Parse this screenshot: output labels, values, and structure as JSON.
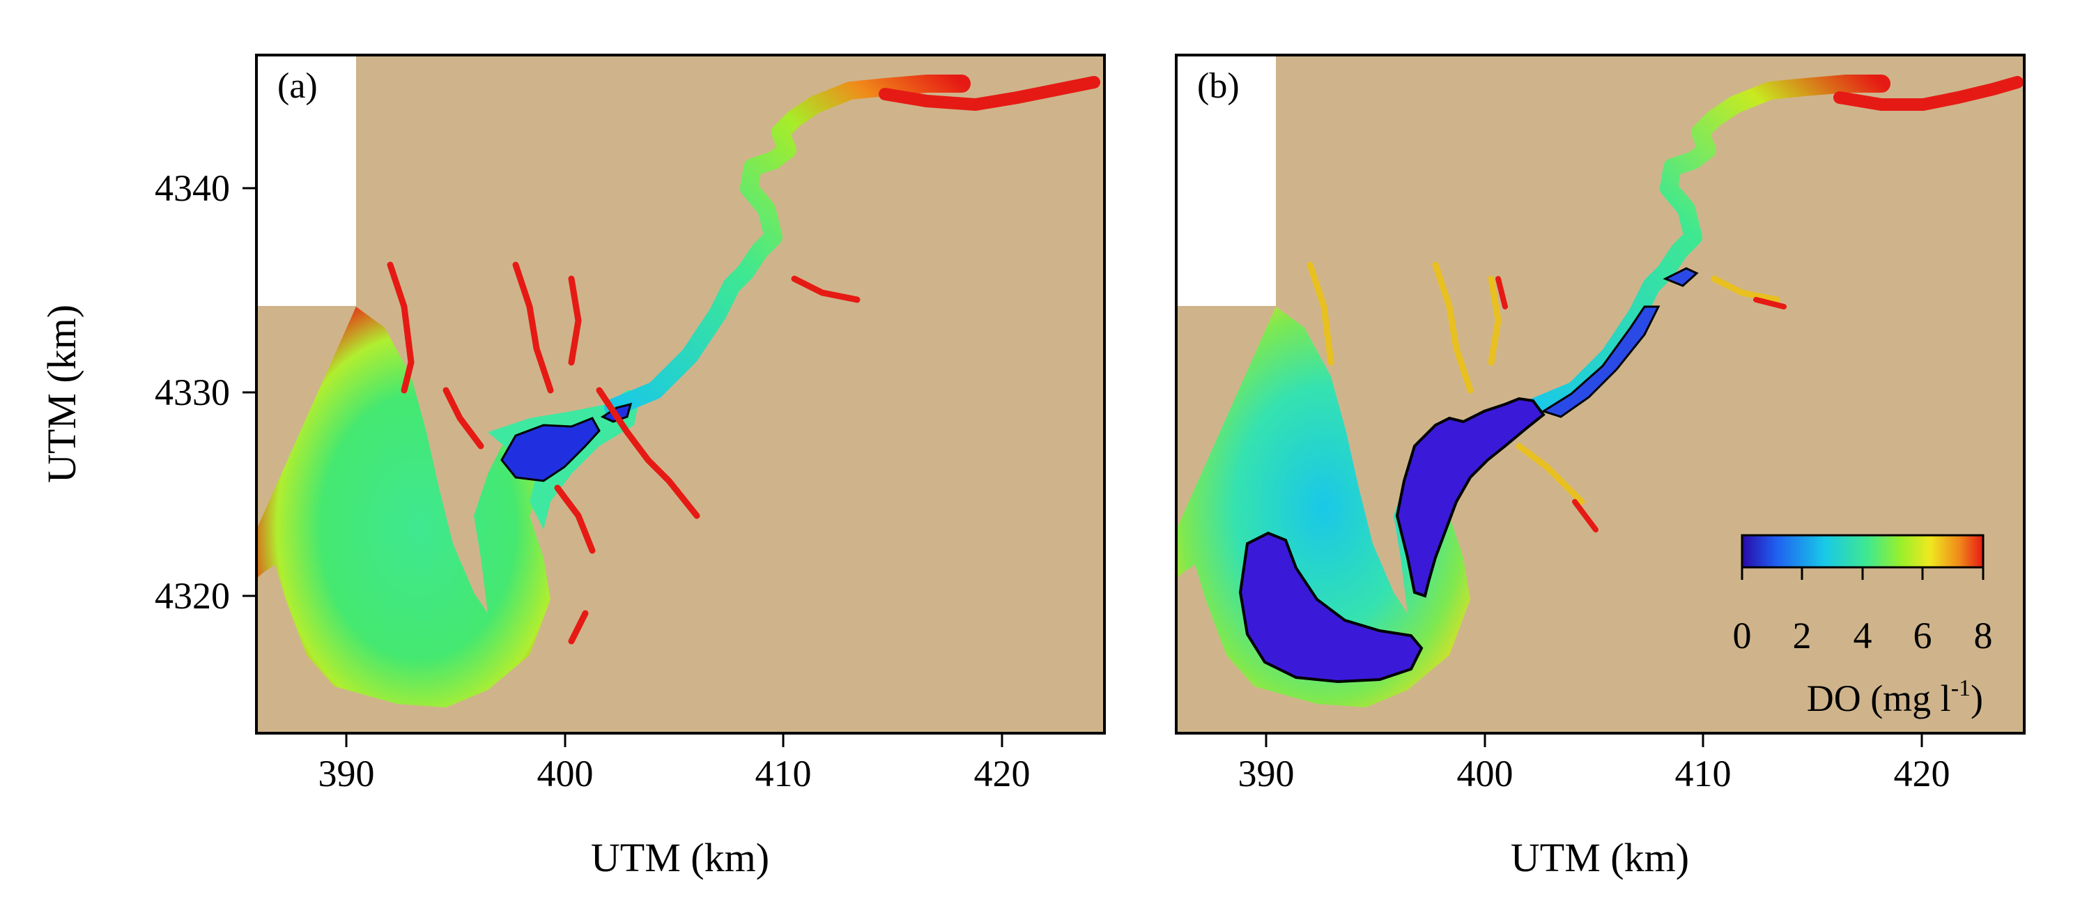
{
  "figure": {
    "colors": {
      "land": "#cfb48b",
      "panel_bg": "#ffffff",
      "contour": "#000000",
      "colormap": [
        "#2a0aa8",
        "#1f5ff0",
        "#19c8e8",
        "#3fe890",
        "#9af02a",
        "#f0e820",
        "#f08a1a",
        "#e61a14"
      ]
    },
    "panels": [
      {
        "label": "(a)",
        "xlabel": "UTM (km)",
        "ylabel": "UTM (km)",
        "xticks": [
          "390",
          "400",
          "410",
          "420"
        ],
        "yticks": [
          "4340",
          "4330",
          "4320"
        ]
      },
      {
        "label": "(b)",
        "xlabel": "UTM (km)",
        "xticks": [
          "390",
          "400",
          "410",
          "420"
        ]
      }
    ],
    "colorbar": {
      "ticks": [
        "0",
        "2",
        "4",
        "6",
        "8"
      ],
      "title": "DO (mg l",
      "title_superscript": "-1",
      "title_close": ")",
      "range": [
        0,
        8
      ]
    }
  }
}
